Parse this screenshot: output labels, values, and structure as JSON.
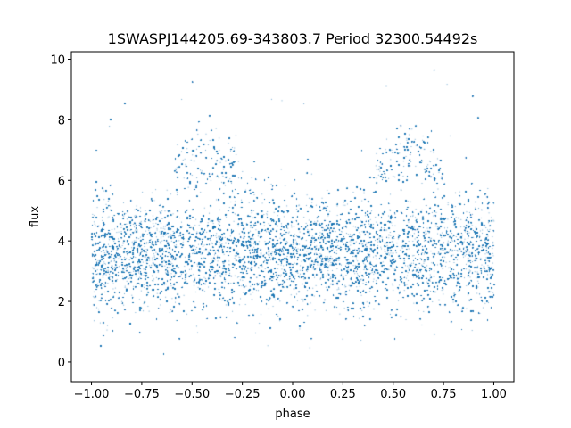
{
  "chart_data": {
    "type": "scatter",
    "title": "1SWASPJ144205.69-343803.7 Period 32300.54492s",
    "xlabel": "phase",
    "ylabel": "flux",
    "xlim": [
      -1.1,
      1.1
    ],
    "ylim": [
      -0.65,
      10.25
    ],
    "x_ticks": [
      -1.0,
      -0.75,
      -0.5,
      -0.25,
      0.0,
      0.25,
      0.5,
      0.75,
      1.0
    ],
    "x_tick_labels": [
      "−1.00",
      "−0.75",
      "−0.50",
      "−0.25",
      "0.00",
      "0.25",
      "0.50",
      "0.75",
      "1.00"
    ],
    "y_ticks": [
      0,
      2,
      4,
      6,
      8,
      10
    ],
    "y_tick_labels": [
      "0",
      "2",
      "4",
      "6",
      "8",
      "10"
    ],
    "grid": false,
    "legend": "none",
    "point_color": "#1f77b4",
    "series": [
      {
        "phase_range": [
          -1.0,
          1.0
        ],
        "point_count": 60000,
        "baseline_flux": 3.6,
        "baseline_spread": 0.9,
        "bright_hump_phases": [
          -0.42,
          0.58
        ],
        "bright_hump_flux_range": [
          6.0,
          7.8
        ],
        "flux_range": [
          0.0,
          9.8
        ]
      }
    ]
  }
}
